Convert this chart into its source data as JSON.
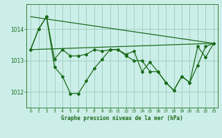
{
  "title": "Graphe pression niveau de la mer (hPa)",
  "bg_color": "#cceee8",
  "grid_color": "#99ccbb",
  "line_color": "#1a6b1a",
  "xlim": [
    -0.5,
    23.5
  ],
  "ylim": [
    1011.5,
    1014.8
  ],
  "yticks": [
    1012,
    1013,
    1014
  ],
  "xticks": [
    0,
    1,
    2,
    3,
    4,
    5,
    6,
    7,
    8,
    9,
    10,
    11,
    12,
    13,
    14,
    15,
    16,
    17,
    18,
    19,
    20,
    21,
    22,
    23
  ],
  "s1_x": [
    0,
    1,
    2,
    3,
    4,
    5,
    6,
    7,
    8,
    9,
    10,
    11,
    12,
    13,
    14,
    15,
    16,
    17,
    18,
    19,
    20,
    21,
    22,
    23
  ],
  "s1_y": [
    1013.35,
    1014.0,
    1014.4,
    1012.8,
    1012.5,
    1011.95,
    1011.95,
    1012.35,
    1012.75,
    1013.05,
    1013.35,
    1013.35,
    1013.15,
    1013.0,
    1013.0,
    1012.65,
    1012.65,
    1012.3,
    1012.05,
    1012.5,
    1012.3,
    1012.85,
    1013.45,
    1013.55
  ],
  "s2_x": [
    0,
    1,
    2,
    3,
    4,
    5,
    6,
    7,
    8,
    9,
    10,
    11,
    12,
    13,
    14,
    15,
    16,
    17,
    18,
    19,
    20,
    21,
    22,
    23
  ],
  "s2_y": [
    1013.35,
    1014.0,
    1014.4,
    1013.05,
    1013.35,
    1013.15,
    1013.15,
    1013.2,
    1013.35,
    1013.3,
    1013.35,
    1013.35,
    1013.2,
    1013.3,
    1012.65,
    1012.95,
    1012.65,
    1012.3,
    1012.05,
    1012.5,
    1012.3,
    1013.45,
    1013.1,
    1013.55
  ],
  "trend1_x": [
    0,
    23
  ],
  "trend1_y": [
    1013.35,
    1013.55
  ],
  "trend2_x": [
    0,
    23
  ],
  "trend2_y": [
    1014.4,
    1013.55
  ]
}
